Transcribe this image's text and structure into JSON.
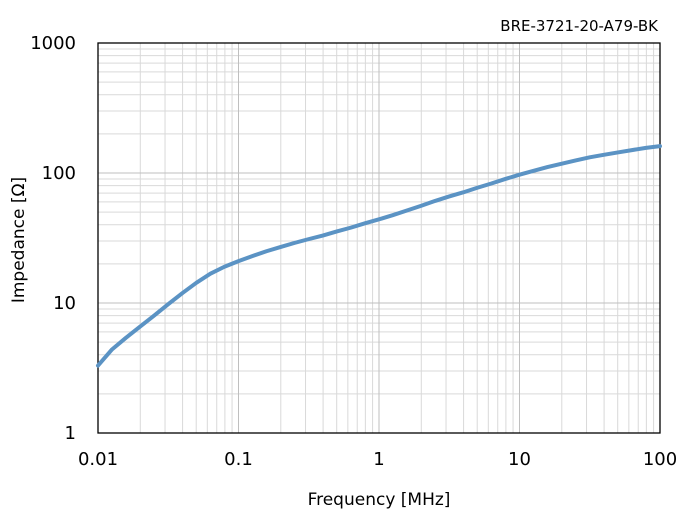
{
  "chart_data": {
    "type": "line",
    "title": "BRE-3721-20-A79-BK",
    "xlabel": "Frequency [MHz]",
    "ylabel": "Impedance [Ω]",
    "x_scale": "log",
    "y_scale": "log",
    "xlim": [
      0.01,
      100
    ],
    "ylim": [
      1,
      1000
    ],
    "x_ticks": [
      "0.01",
      "0.1",
      "1",
      "10",
      "100"
    ],
    "y_ticks": [
      "1",
      "10",
      "100",
      "1000"
    ],
    "grid": true,
    "series": [
      {
        "color": "#5b93c4",
        "x": [
          0.01,
          0.0126,
          0.0158,
          0.02,
          0.0251,
          0.0316,
          0.0398,
          0.0501,
          0.0631,
          0.0794,
          0.1,
          0.126,
          0.158,
          0.2,
          0.251,
          0.316,
          0.398,
          0.501,
          0.631,
          0.794,
          1,
          1.26,
          1.58,
          2,
          2.51,
          3.16,
          3.98,
          5.01,
          6.31,
          7.94,
          10,
          12.6,
          15.8,
          20,
          25.1,
          31.6,
          39.8,
          50.1,
          63.1,
          79.4,
          100
        ],
        "y": [
          3.3,
          4.4,
          5.4,
          6.6,
          8.0,
          9.8,
          11.9,
          14.3,
          16.8,
          19.0,
          21.0,
          23.0,
          25.0,
          27.0,
          29.0,
          31.0,
          33.0,
          35.5,
          38.0,
          41.0,
          44.0,
          47.5,
          51.5,
          56.0,
          61.0,
          66.0,
          71.0,
          77.0,
          83.0,
          90.0,
          97.0,
          104.0,
          111.0,
          118.0,
          125.0,
          132.0,
          138.0,
          144.0,
          150.0,
          156.0,
          161.0
        ]
      }
    ]
  }
}
